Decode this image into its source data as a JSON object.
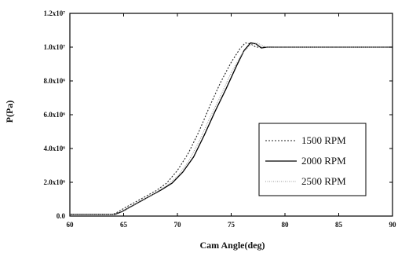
{
  "chart_data": {
    "type": "line",
    "title": "",
    "xlabel": "Cam Angle(deg)",
    "ylabel": "P(Pa)",
    "xlim": [
      60,
      90
    ],
    "ylim": [
      0,
      12000000
    ],
    "grid": false,
    "legend_position": "center-right",
    "x_ticks": [
      {
        "value": 60,
        "label": "60"
      },
      {
        "value": 65,
        "label": "65"
      },
      {
        "value": 70,
        "label": "70"
      },
      {
        "value": 75,
        "label": "75"
      },
      {
        "value": 80,
        "label": "80"
      },
      {
        "value": 85,
        "label": "85"
      },
      {
        "value": 90,
        "label": "90"
      }
    ],
    "y_ticks": [
      {
        "value": 0,
        "label": "0.0"
      },
      {
        "value": 2000000,
        "label": "2.0x10⁶"
      },
      {
        "value": 4000000,
        "label": "4.0x10⁶"
      },
      {
        "value": 6000000,
        "label": "6.0x10⁶"
      },
      {
        "value": 8000000,
        "label": "8.0x10⁶"
      },
      {
        "value": 10000000,
        "label": "1.0x10⁷"
      },
      {
        "value": 12000000,
        "label": "1.2x10⁷"
      }
    ],
    "series": [
      {
        "name": "1500 RPM",
        "style": "dotted",
        "color": "#222222",
        "points": [
          [
            60,
            100000
          ],
          [
            64,
            100000
          ],
          [
            64.5,
            250000
          ],
          [
            65,
            450000
          ],
          [
            66,
            800000
          ],
          [
            67,
            1150000
          ],
          [
            68,
            1500000
          ],
          [
            69,
            1950000
          ],
          [
            70,
            2700000
          ],
          [
            71,
            3700000
          ],
          [
            72,
            5000000
          ],
          [
            73,
            6500000
          ],
          [
            74,
            7900000
          ],
          [
            75,
            9100000
          ],
          [
            75.8,
            9900000
          ],
          [
            76.3,
            10250000
          ],
          [
            76.8,
            10200000
          ],
          [
            77.3,
            10000000
          ],
          [
            78,
            10000000
          ],
          [
            90,
            10000000
          ]
        ]
      },
      {
        "name": "2000 RPM",
        "style": "solid",
        "color": "#000000",
        "points": [
          [
            60,
            100000
          ],
          [
            64.2,
            100000
          ],
          [
            64.8,
            250000
          ],
          [
            65.5,
            500000
          ],
          [
            66.5,
            850000
          ],
          [
            67.5,
            1200000
          ],
          [
            68.5,
            1550000
          ],
          [
            69.5,
            1950000
          ],
          [
            70.5,
            2600000
          ],
          [
            71.5,
            3500000
          ],
          [
            72.5,
            4800000
          ],
          [
            73.5,
            6200000
          ],
          [
            74.5,
            7500000
          ],
          [
            75.5,
            8900000
          ],
          [
            76.2,
            9800000
          ],
          [
            76.8,
            10250000
          ],
          [
            77.3,
            10200000
          ],
          [
            77.8,
            9950000
          ],
          [
            78.3,
            10000000
          ],
          [
            90,
            10000000
          ]
        ]
      },
      {
        "name": "2500 RPM",
        "style": "dotted-faint",
        "color": "#9a9a9a",
        "points": [
          [
            60,
            100000
          ],
          [
            64.3,
            100000
          ],
          [
            65,
            300000
          ],
          [
            66,
            650000
          ],
          [
            67,
            1000000
          ],
          [
            68,
            1400000
          ],
          [
            69,
            1800000
          ],
          [
            70,
            2350000
          ],
          [
            71,
            3200000
          ],
          [
            72,
            4400000
          ],
          [
            73,
            5800000
          ],
          [
            74,
            7100000
          ],
          [
            75,
            8500000
          ],
          [
            76,
            9600000
          ],
          [
            76.8,
            10150000
          ],
          [
            77.4,
            10250000
          ],
          [
            78,
            10050000
          ],
          [
            78.6,
            9980000
          ],
          [
            79.2,
            10000000
          ],
          [
            90,
            10000000
          ]
        ]
      }
    ]
  }
}
